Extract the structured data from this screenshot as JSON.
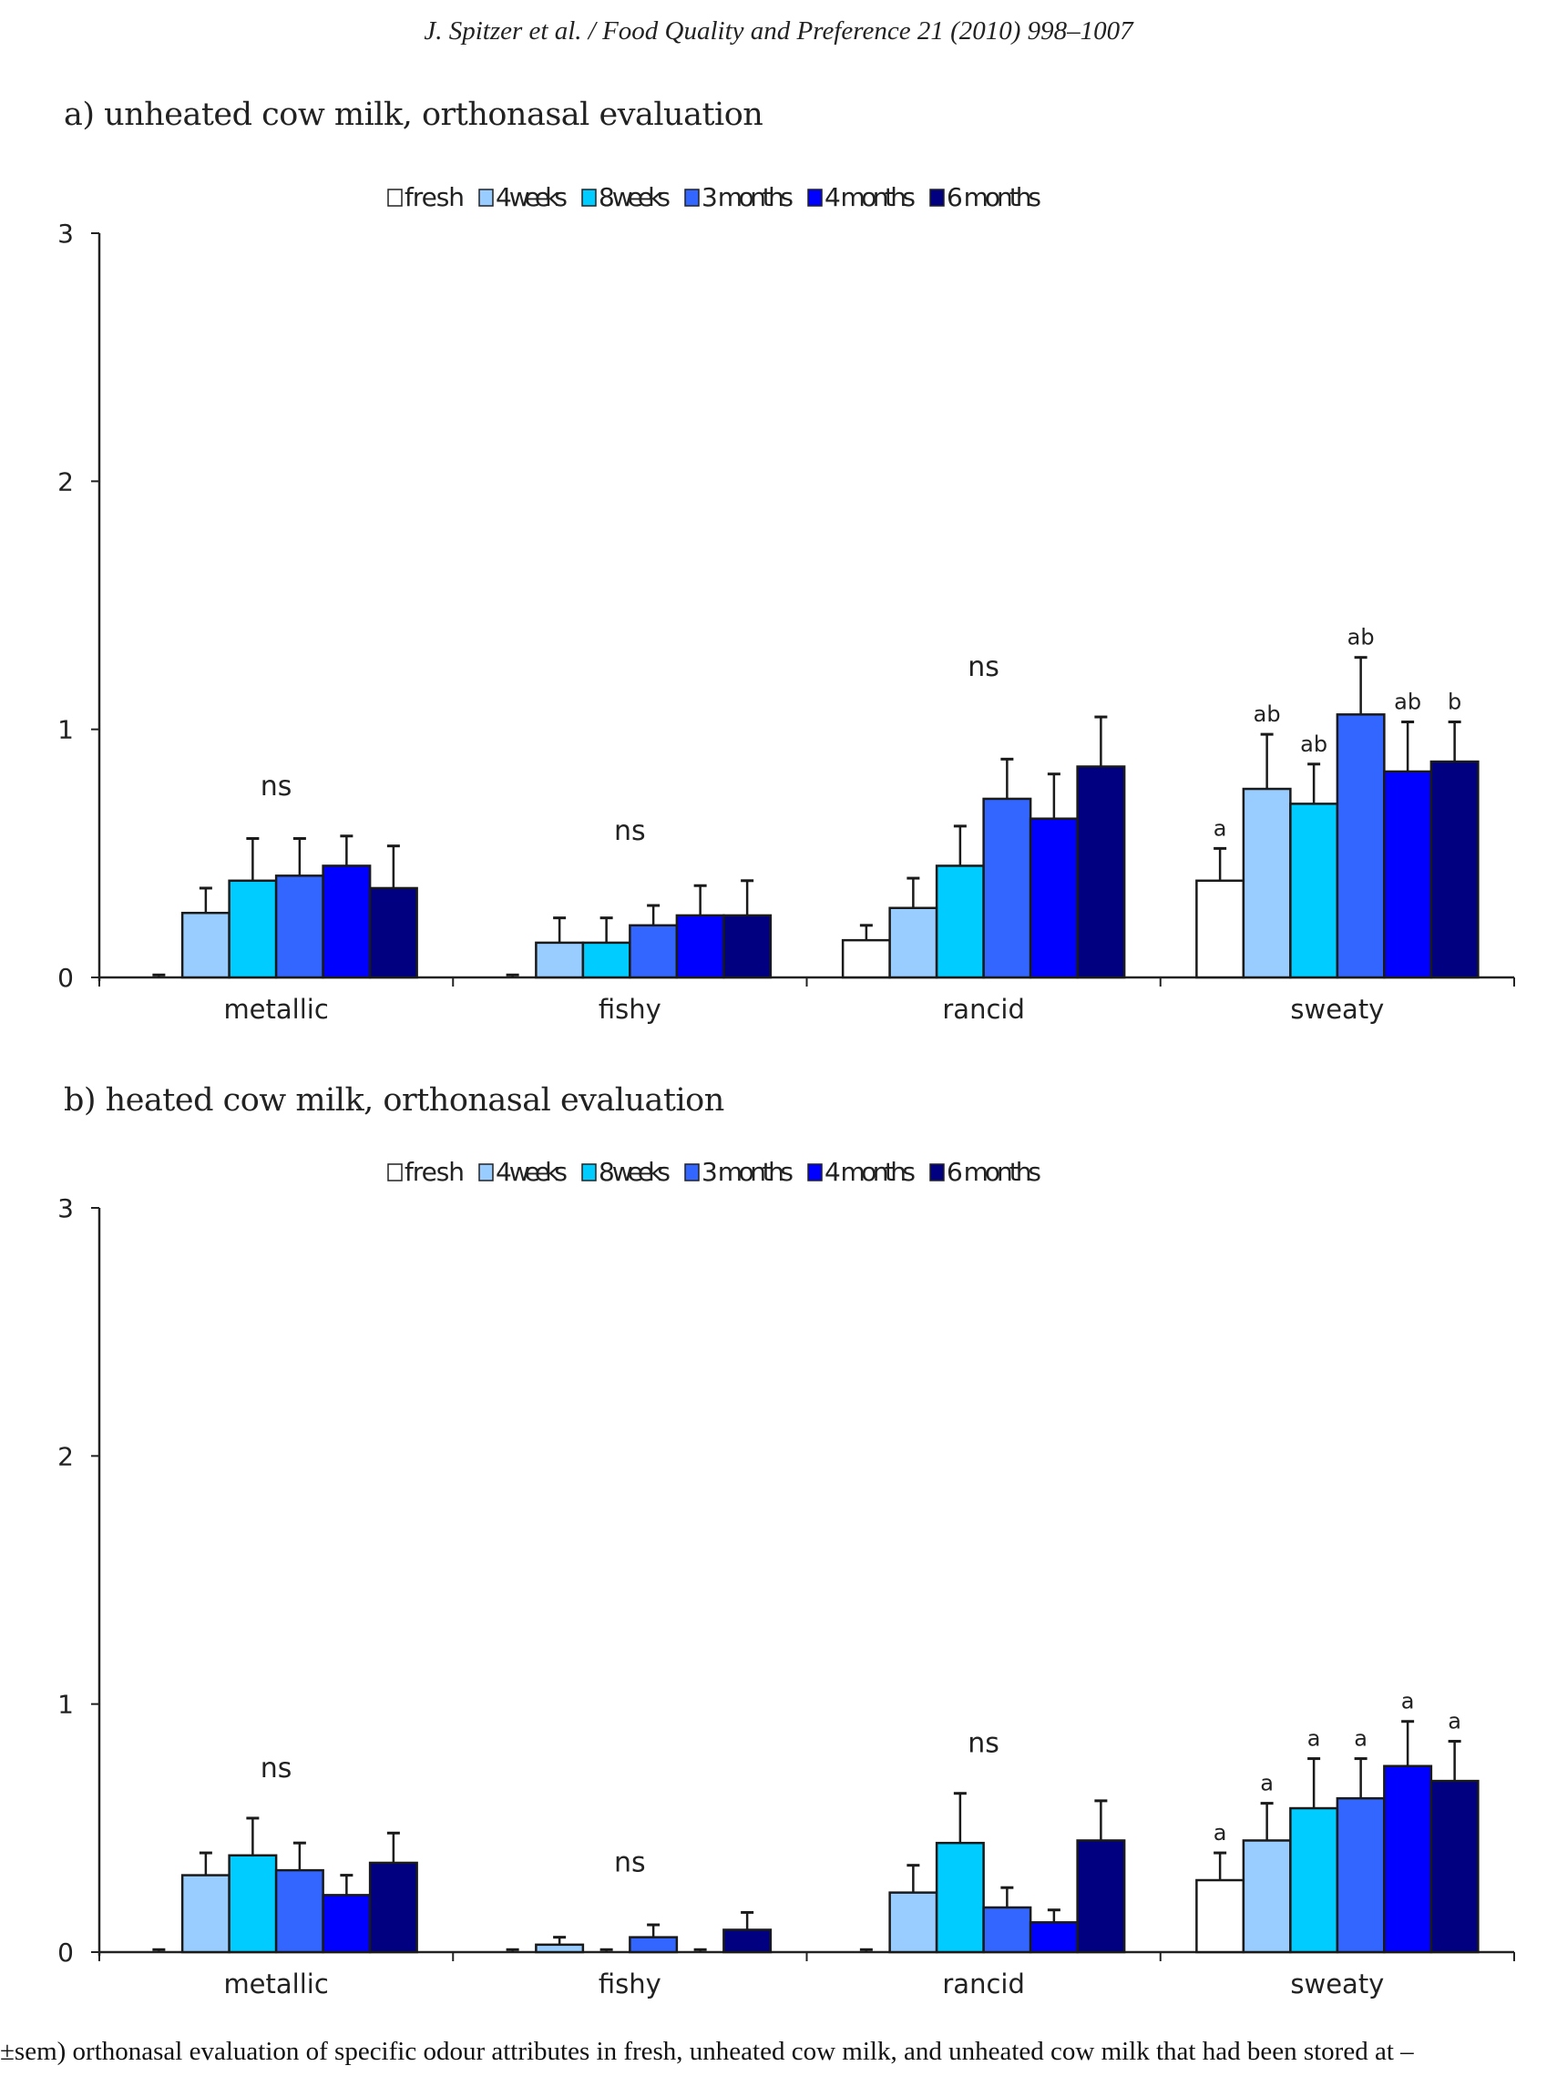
{
  "header": {
    "running_head": "J. Spitzer et al. / Food Quality and Preference 21 (2010) 998–1007"
  },
  "caption": "±sem) orthonasal evaluation of specific odour attributes in fresh, unheated cow milk, and unheated cow milk that had been stored at –",
  "legend": [
    {
      "label": "fresh",
      "color": "#ffffff"
    },
    {
      "label": "4 weeks",
      "color": "#99ccff"
    },
    {
      "label": "8 weeks",
      "color": "#00ccff"
    },
    {
      "label": "3 months",
      "color": "#3366ff"
    },
    {
      "label": "4 months",
      "color": "#0000ff"
    },
    {
      "label": "6 months",
      "color": "#000080"
    }
  ],
  "chart_data": [
    {
      "type": "bar",
      "title": "a) unheated cow milk, orthonasal evaluation",
      "xlabel": "",
      "ylabel": "",
      "ylim": [
        0,
        3
      ],
      "yticks": [
        "0",
        "1",
        "2",
        "3"
      ],
      "grid": false,
      "legend_position": "top-center",
      "categories": [
        "metallic",
        "fishy",
        "rancid",
        "sweaty"
      ],
      "series": [
        {
          "name": "fresh",
          "values": [
            0.0,
            0.0,
            0.15,
            0.39
          ],
          "sem": [
            0.01,
            0.01,
            0.06,
            0.13
          ]
        },
        {
          "name": "4 weeks",
          "values": [
            0.26,
            0.14,
            0.28,
            0.76
          ],
          "sem": [
            0.1,
            0.1,
            0.12,
            0.22
          ]
        },
        {
          "name": "8 weeks",
          "values": [
            0.39,
            0.14,
            0.45,
            0.7
          ],
          "sem": [
            0.17,
            0.1,
            0.16,
            0.16
          ]
        },
        {
          "name": "3 months",
          "values": [
            0.41,
            0.21,
            0.72,
            1.06
          ],
          "sem": [
            0.15,
            0.08,
            0.16,
            0.23
          ]
        },
        {
          "name": "4 months",
          "values": [
            0.45,
            0.25,
            0.64,
            0.83
          ],
          "sem": [
            0.12,
            0.12,
            0.18,
            0.2
          ]
        },
        {
          "name": "6 months",
          "values": [
            0.36,
            0.25,
            0.85,
            0.87
          ],
          "sem": [
            0.17,
            0.14,
            0.2,
            0.16
          ]
        }
      ],
      "group_annotations": [
        "ns",
        "ns",
        "ns",
        null
      ],
      "bar_annotations": {
        "sweaty": [
          "a",
          "ab",
          "ab",
          "ab",
          "ab",
          "b"
        ]
      }
    },
    {
      "type": "bar",
      "title": "b) heated cow milk, orthonasal evaluation",
      "xlabel": "",
      "ylabel": "",
      "ylim": [
        0,
        3
      ],
      "yticks": [
        "0",
        "1",
        "2",
        "3"
      ],
      "grid": false,
      "legend_position": "top-center",
      "categories": [
        "metallic",
        "fishy",
        "rancid",
        "sweaty"
      ],
      "series": [
        {
          "name": "fresh",
          "values": [
            0.0,
            0.0,
            0.0,
            0.29
          ],
          "sem": [
            0.01,
            0.01,
            0.01,
            0.11
          ]
        },
        {
          "name": "4 weeks",
          "values": [
            0.31,
            0.03,
            0.24,
            0.45
          ],
          "sem": [
            0.09,
            0.03,
            0.11,
            0.15
          ]
        },
        {
          "name": "8 weeks",
          "values": [
            0.39,
            0.0,
            0.44,
            0.58
          ],
          "sem": [
            0.15,
            0.01,
            0.2,
            0.2
          ]
        },
        {
          "name": "3 months",
          "values": [
            0.33,
            0.06,
            0.18,
            0.62
          ],
          "sem": [
            0.11,
            0.05,
            0.08,
            0.16
          ]
        },
        {
          "name": "4 months",
          "values": [
            0.23,
            0.0,
            0.12,
            0.75
          ],
          "sem": [
            0.08,
            0.01,
            0.05,
            0.18
          ]
        },
        {
          "name": "6 months",
          "values": [
            0.36,
            0.09,
            0.45,
            0.69
          ],
          "sem": [
            0.12,
            0.07,
            0.16,
            0.16
          ]
        }
      ],
      "group_annotations": [
        "ns",
        "ns",
        "ns",
        null
      ],
      "bar_annotations": {
        "sweaty": [
          "a",
          "a",
          "a",
          "a",
          "a",
          "a"
        ]
      }
    }
  ]
}
